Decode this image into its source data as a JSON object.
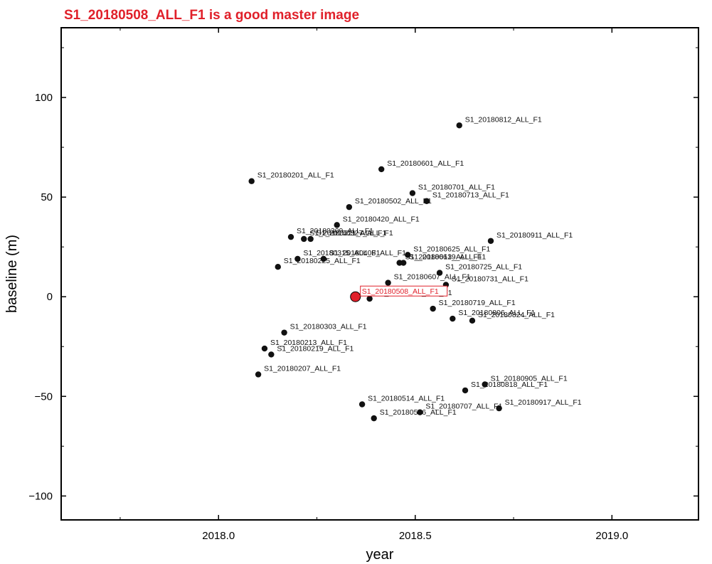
{
  "chart_data": {
    "type": "scatter",
    "title": "S1_20180508_ALL_F1 is a good master image",
    "xlabel": "year",
    "ylabel": "baseline (m)",
    "xlim": [
      2017.6,
      2019.22
    ],
    "ylim": [
      -112,
      135
    ],
    "xticks": [
      2018.0,
      2018.5,
      2019.0
    ],
    "xtick_labels": [
      "2018.0",
      "2018.5",
      "2019.0"
    ],
    "yticks": [
      -100,
      -50,
      0,
      50,
      100
    ],
    "ytick_labels": [
      "−100",
      "−50",
      "0",
      "50",
      "100"
    ],
    "grid": false,
    "colors": {
      "title": "#e0202a",
      "master": "#e0202a",
      "points": "#111111",
      "frame": "#000000"
    },
    "master": {
      "label": "S1_20180508_ALL_F1",
      "x": 2018.348,
      "y": 0
    },
    "points": [
      {
        "label": "S1_20180201_ALL_F1",
        "x": 2018.084,
        "y": 58
      },
      {
        "label": "S1_20180207_ALL_F1",
        "x": 2018.101,
        "y": -39
      },
      {
        "label": "S1_20180213_ALL_F1",
        "x": 2018.117,
        "y": -26
      },
      {
        "label": "S1_20180219_ALL_F1",
        "x": 2018.134,
        "y": -29
      },
      {
        "label": "S1_20180225_ALL_F1",
        "x": 2018.151,
        "y": 15
      },
      {
        "label": "S1_20180303_ALL_F1",
        "x": 2018.167,
        "y": -18
      },
      {
        "label": "S1_20180309_ALL_F1",
        "x": 2018.184,
        "y": 30
      },
      {
        "label": "S1_20180315_ALL_F1",
        "x": 2018.201,
        "y": 19
      },
      {
        "label": "S1_20180321_ALL_F1",
        "x": 2018.217,
        "y": 29
      },
      {
        "label": "S1_20180327_ALL_F1",
        "x": 2018.234,
        "y": 29
      },
      {
        "label": "S1_20180408_ALL_F1",
        "x": 2018.267,
        "y": 19
      },
      {
        "label": "S1_20180420_ALL_F1",
        "x": 2018.301,
        "y": 36
      },
      {
        "label": "S1_20180502_ALL_F1",
        "x": 2018.332,
        "y": 45
      },
      {
        "label": "S1_20180514_ALL_F1",
        "x": 2018.365,
        "y": -54
      },
      {
        "label": "S1_20180520_ALL_F1",
        "x": 2018.384,
        "y": -1
      },
      {
        "label": "S1_20180526_ALL_F1",
        "x": 2018.395,
        "y": -61
      },
      {
        "label": "S1_20180601_ALL_F1",
        "x": 2018.414,
        "y": 64
      },
      {
        "label": "S1_20180607_ALL_F1",
        "x": 2018.431,
        "y": 7
      },
      {
        "label": "S1_20180613_ALL_F1",
        "x": 2018.46,
        "y": 17
      },
      {
        "label": "S1_20180619_ALL_F1",
        "x": 2018.47,
        "y": 17
      },
      {
        "label": "S1_20180625_ALL_F1",
        "x": 2018.481,
        "y": 21
      },
      {
        "label": "S1_20180701_ALL_F1",
        "x": 2018.493,
        "y": 52
      },
      {
        "label": "S1_20180707_ALL_F1",
        "x": 2018.512,
        "y": -58
      },
      {
        "label": "S1_20180713_ALL_F1",
        "x": 2018.529,
        "y": 48
      },
      {
        "label": "S1_20180719_ALL_F1",
        "x": 2018.545,
        "y": -6
      },
      {
        "label": "S1_20180725_ALL_F1",
        "x": 2018.562,
        "y": 12
      },
      {
        "label": "S1_20180731_ALL_F1",
        "x": 2018.578,
        "y": 6
      },
      {
        "label": "S1_20180806_ALL_F1",
        "x": 2018.595,
        "y": -11
      },
      {
        "label": "S1_20180812_ALL_F1",
        "x": 2018.612,
        "y": 86
      },
      {
        "label": "S1_20180818_ALL_F1",
        "x": 2018.627,
        "y": -47
      },
      {
        "label": "S1_20180824_ALL_F1",
        "x": 2018.645,
        "y": -12
      },
      {
        "label": "S1_20180905_ALL_F1",
        "x": 2018.677,
        "y": -44
      },
      {
        "label": "S1_20180911_ALL_F1",
        "x": 2018.692,
        "y": 28
      },
      {
        "label": "S1_20180917_ALL_F1",
        "x": 2018.713,
        "y": -56
      }
    ]
  }
}
